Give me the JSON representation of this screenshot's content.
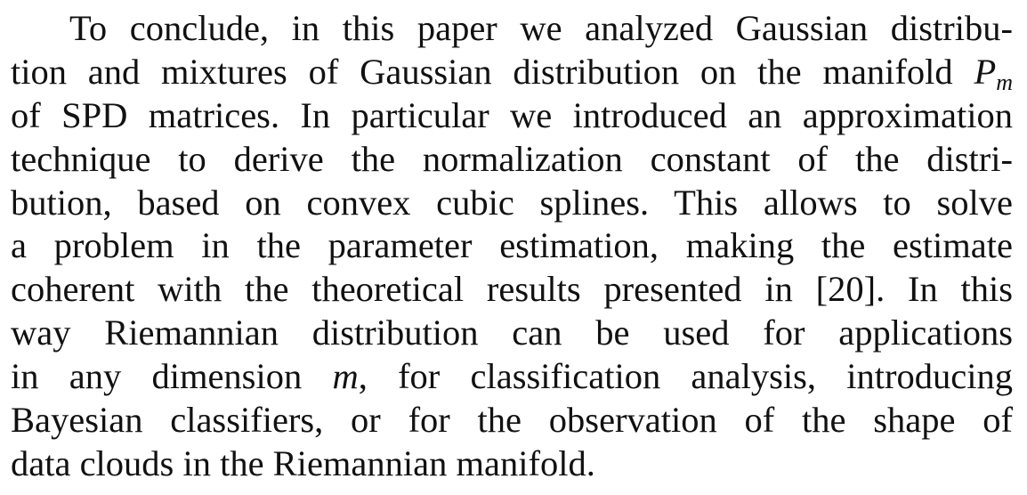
{
  "paragraph": {
    "line_01": "To conclude, in this paper we analyzed Gaussian distribu-",
    "line_02_pre": "tion and mixtures of Gaussian distribution on the manifold",
    "line_02_math": "P",
    "line_02_sub": "m",
    "line_03": "of SPD matrices. In particular we introduced an approximation",
    "line_04": "technique to derive the normalization constant of the distri-",
    "line_05": "bution, based on convex cubic splines. This allows to solve",
    "line_06": "a problem in the parameter estimation, making the estimate",
    "line_07": "coherent with the theoretical results presented in [20]. In this",
    "line_08": "way Riemannian distribution can be used for applications",
    "line_09_pre": "in any dimension",
    "line_09_math": "m",
    "line_09_post": ", for classification analysis, introducing",
    "line_10": "Bayesian classifiers, or for the observation of the shape of",
    "line_11": "data clouds in the Riemannian manifold."
  }
}
